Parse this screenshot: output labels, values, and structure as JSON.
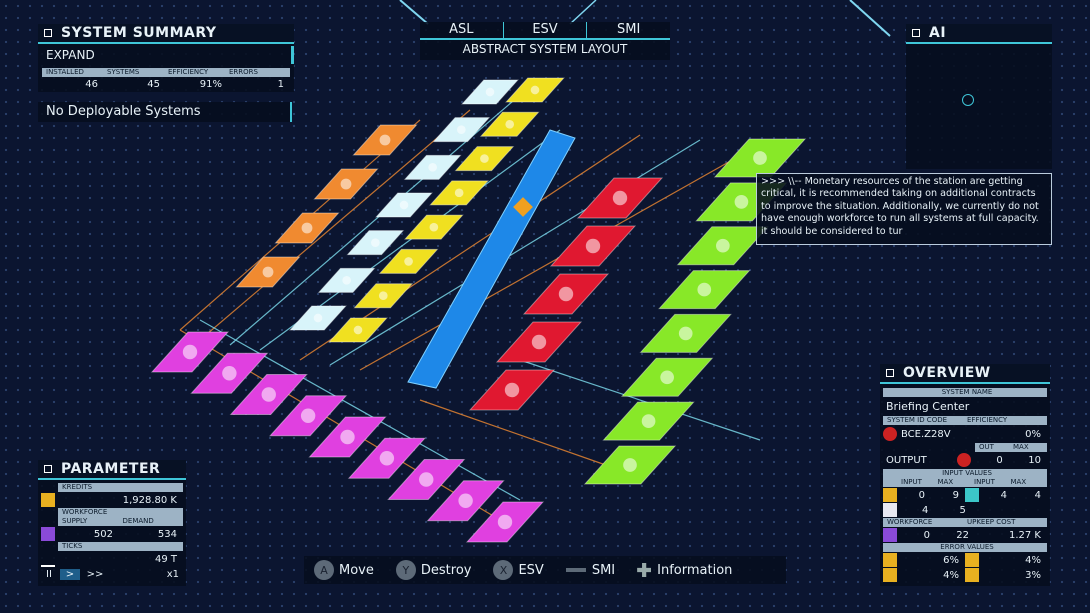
{
  "tabs": {
    "items": [
      "ASL",
      "ESV",
      "SMI"
    ],
    "subtitle": "ABSTRACT SYSTEM LAYOUT"
  },
  "system_summary": {
    "title": "SYSTEM SUMMARY",
    "mode": "EXPAND",
    "headers": [
      "INSTALLED",
      "SYSTEMS",
      "EFFICIENCY",
      "ERRORS"
    ],
    "values": [
      "46",
      "45",
      "91%",
      "1"
    ],
    "status": "No Deployable Systems"
  },
  "ai": {
    "title": "AI",
    "message": ">>> \\\\-- Monetary resources of the station are getting critical, it is recommended taking on additional contracts to improve the situation. Additionally, we currently do not have enough workforce to run all systems at full capacity. it should be considered to tur"
  },
  "overview": {
    "title": "OVERVIEW",
    "system_name_label": "SYSTEM NAME",
    "system_name": "Briefing Center",
    "id_label": "SYSTEM ID CODE",
    "efficiency_label": "EFFICIENCY",
    "id_code": "BCE.Z28V",
    "efficiency": "0%",
    "out_label": "OUT",
    "max_label": "MAX",
    "output_label": "OUTPUT",
    "output_out": "0",
    "output_max": "10",
    "input_values_label": "INPUT VALUES",
    "input_headers": [
      "INPUT",
      "MAX",
      "INPUT",
      "MAX"
    ],
    "input_rows": [
      [
        "0",
        "9",
        "4",
        "4"
      ],
      [
        "4",
        "5"
      ]
    ],
    "workforce_label": "WORKFORCE",
    "upkeep_label": "UPKEEP COST",
    "workforce": [
      "0",
      "22"
    ],
    "upkeep": "1.27 K",
    "error_label": "ERROR VALUES",
    "errors": [
      "6%",
      "4%",
      "4%",
      "3%"
    ]
  },
  "parameter": {
    "title": "PARAMETER",
    "kredits_label": "KREDITS",
    "kredits": "1,928.80 K",
    "workforce_label": "WORKFORCE",
    "supply_label": "SUPPLY",
    "demand_label": "DEMAND",
    "supply": "502",
    "demand": "534",
    "ticks_label": "TICKS",
    "ticks": "49 T",
    "controls": [
      "II",
      ">",
      ">>",
      "x1"
    ]
  },
  "controls": [
    {
      "button": "A",
      "action": "Move"
    },
    {
      "button": "Y",
      "action": "Destroy"
    },
    {
      "button": "X",
      "action": "ESV"
    },
    {
      "action": "SMI"
    },
    {
      "action": "Information"
    }
  ]
}
